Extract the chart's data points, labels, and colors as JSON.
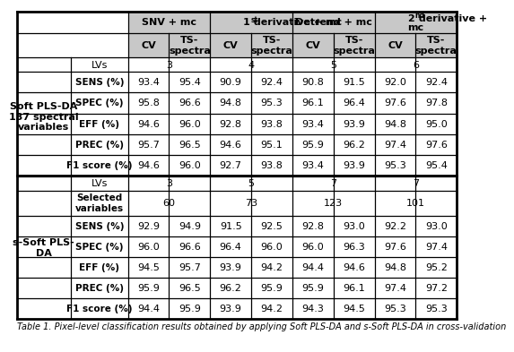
{
  "title_caption": "Table 1. Pixel-level classification results obtained by applying Soft PLS-DA and s-Soft PLS-DA in cross-validation",
  "header_bg": "#c8c8c8",
  "bg_color": "#ffffff",
  "text_color": "#000000",
  "s1_label": "Soft PLS-DA\n137 spectral\nvariables",
  "s2_label": "s-Soft PLS-\nDA",
  "group_headers": [
    "SNV + mc",
    "1st derivative + mc",
    "Detrend + mc",
    "2nd derivative +\nmc"
  ],
  "sub_headers": [
    "CV",
    "TS-\nspectra",
    "CV",
    "TS-\nspectra",
    "CV",
    "TS-\nspectra",
    "CV",
    "TS-\nspectra"
  ],
  "s1_lvs": [
    "3",
    "4",
    "5",
    "6"
  ],
  "s1_metrics": [
    "SENS (%)",
    "SPEC (%)",
    "EFF (%)",
    "PREC (%)",
    "F1 score (%)"
  ],
  "s1_data": [
    [
      "93.4",
      "95.4",
      "90.9",
      "92.4",
      "90.8",
      "91.5",
      "92.0",
      "92.4"
    ],
    [
      "95.8",
      "96.6",
      "94.8",
      "95.3",
      "96.1",
      "96.4",
      "97.6",
      "97.8"
    ],
    [
      "94.6",
      "96.0",
      "92.8",
      "93.8",
      "93.4",
      "93.9",
      "94.8",
      "95.0"
    ],
    [
      "95.7",
      "96.5",
      "94.6",
      "95.1",
      "95.9",
      "96.2",
      "97.4",
      "97.6"
    ],
    [
      "94.6",
      "96.0",
      "92.7",
      "93.8",
      "93.4",
      "93.9",
      "95.3",
      "95.4"
    ]
  ],
  "s2_lvs": [
    "3",
    "5",
    "7",
    "7"
  ],
  "s2_sel": [
    "60",
    "73",
    "123",
    "101"
  ],
  "s2_metrics": [
    "SENS (%)",
    "SPEC (%)",
    "EFF (%)",
    "PREC (%)",
    "F1 score (%)"
  ],
  "s2_data": [
    [
      "92.9",
      "94.9",
      "91.5",
      "92.5",
      "92.8",
      "93.0",
      "92.2",
      "93.0"
    ],
    [
      "96.0",
      "96.6",
      "96.4",
      "96.0",
      "96.0",
      "96.3",
      "97.6",
      "97.4"
    ],
    [
      "94.5",
      "95.7",
      "93.9",
      "94.2",
      "94.4",
      "94.6",
      "94.8",
      "95.2"
    ],
    [
      "95.9",
      "96.5",
      "96.2",
      "95.9",
      "95.9",
      "96.1",
      "97.4",
      "97.2"
    ],
    [
      "94.4",
      "95.9",
      "93.9",
      "94.2",
      "94.3",
      "94.5",
      "95.3",
      "95.3"
    ]
  ]
}
